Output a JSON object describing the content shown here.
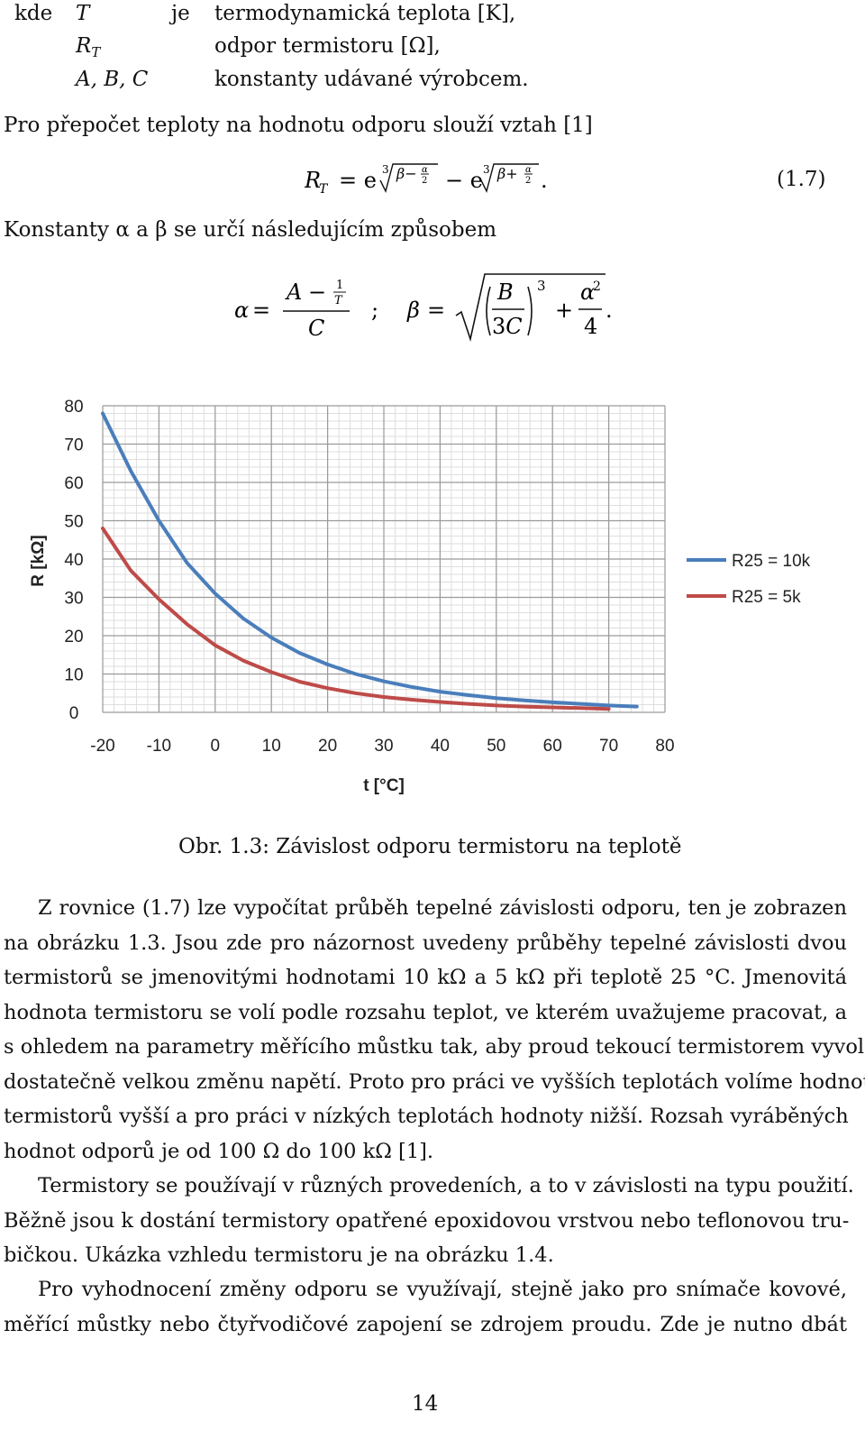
{
  "definitions": [
    {
      "sym": "T",
      "verb": "je",
      "desc": "termodynamická teplota [K],"
    },
    {
      "sym": "R",
      "sub": "T",
      "verb": "",
      "desc": "odpor termistoru [Ω],"
    },
    {
      "sym": "A, B, C",
      "verb": "",
      "desc": "konstanty udávané výrobcem."
    }
  ],
  "def_prefix": "kde",
  "intro1": "Pro přepočet teploty na hodnotu odporu slouží vztah [1]",
  "eq_number": "(1.7)",
  "intro2": "Konstanty α a β se určí následujícím způsobem",
  "chart_data": {
    "type": "line",
    "xlabel": "t [°C]",
    "ylabel": "R [kΩ]",
    "xlim": [
      -20,
      80
    ],
    "ylim": [
      0,
      80
    ],
    "xticks": [
      "-20",
      "-10",
      "0",
      "10",
      "20",
      "30",
      "40",
      "50",
      "60",
      "70",
      "80"
    ],
    "yticks": [
      "80",
      "70",
      "60",
      "50",
      "40",
      "30",
      "20",
      "10",
      "0"
    ],
    "grid": true,
    "legend": "right",
    "series": [
      {
        "name": "R25 = 10k",
        "color": "#4a7ebb",
        "x": [
          -20,
          -15,
          -10,
          -5,
          0,
          5,
          10,
          15,
          20,
          25,
          30,
          35,
          40,
          45,
          50,
          55,
          60,
          65,
          70,
          75
        ],
        "y": [
          78,
          63,
          50,
          39,
          31,
          24.5,
          19.5,
          15.5,
          12.5,
          10,
          8.1,
          6.6,
          5.4,
          4.5,
          3.7,
          3.1,
          2.6,
          2.2,
          1.8,
          1.5
        ]
      },
      {
        "name": "R25 = 5k",
        "color": "#be4b48",
        "x": [
          -20,
          -15,
          -10,
          -5,
          0,
          5,
          10,
          15,
          20,
          25,
          30,
          35,
          40,
          45,
          50,
          55,
          60,
          65,
          70
        ],
        "y": [
          48,
          37,
          29.5,
          23,
          17.5,
          13.5,
          10.5,
          8,
          6.3,
          5,
          4,
          3.3,
          2.7,
          2.2,
          1.8,
          1.5,
          1.3,
          1.1,
          0.9
        ]
      }
    ]
  },
  "caption": "Obr. 1.3: Závislost odporu termistoru na teplotě",
  "para1": [
    "Z rovnice (1.7) lze vypočítat průběh tepelné závislosti odporu, ten je zobrazen",
    "na obrázku 1.3. Jsou zde pro názornost uvedeny průběhy tepelné závislosti dvou",
    "termistorů se jmenovitými hodnotami 10 kΩ a 5 kΩ při teplotě 25 °C. Jmenovitá",
    "hodnota termistoru se volí podle rozsahu teplot, ve kterém uvažujeme pracovat, a",
    "s ohledem na parametry měřícího můstku tak, aby proud tekoucí termistorem vyvolal",
    "dostatečně velkou změnu napětí. Proto pro práci ve vyšších teplotách volíme hodnoty",
    "termistorů vyšší a pro práci v nízkých teplotách hodnoty nižší. Rozsah vyráběných",
    "hodnot odporů je od 100 Ω do 100 kΩ [1]."
  ],
  "para2": [
    "Termistory se používají v různých provedeních, a to v závislosti na typu použití.",
    "Běžně jsou k dostání termistory opatřené epoxidovou vrstvou nebo teflonovou tru-",
    "bičkou. Ukázka vzhledu termistoru je na obrázku 1.4."
  ],
  "para3": [
    "Pro vyhodnocení změny odporu se využívají, stejně jako pro snímače kovové,",
    "měřící můstky nebo čtyřvodičové zapojení se zdrojem proudu. Zde je nutno dbát"
  ],
  "page_number": "14"
}
